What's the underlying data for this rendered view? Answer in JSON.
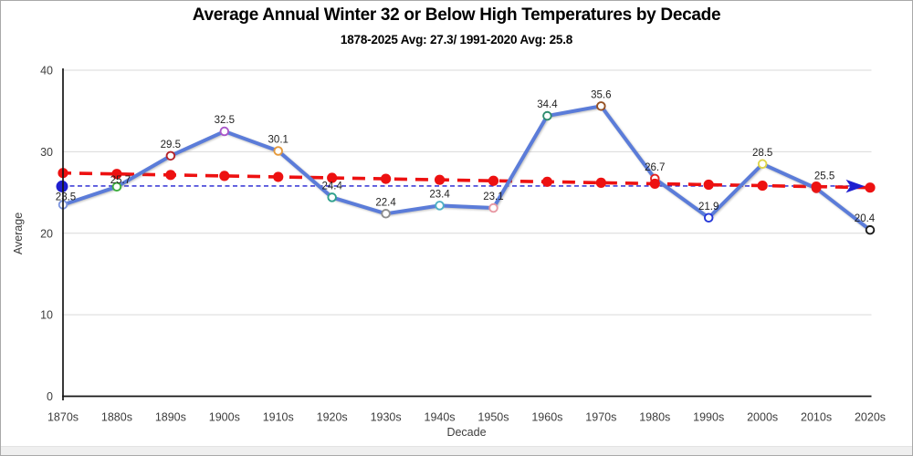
{
  "window": {
    "background": "#ffffff",
    "border_color": "#a9a9a9",
    "footer_strip_color": "#efefef"
  },
  "chart_data": {
    "type": "line",
    "title": "Average Annual Winter 32 or Below High Temperatures by Decade",
    "subtitle": "1878-2025 Avg: 27.3/ 1991-2020 Avg: 25.8",
    "xlabel": "Decade",
    "ylabel": "Average",
    "categories": [
      "1870s",
      "1880s",
      "1890s",
      "1900s",
      "1910s",
      "1920s",
      "1930s",
      "1940s",
      "1950s",
      "1960s",
      "1970s",
      "1980s",
      "1990s",
      "2000s",
      "2010s",
      "2020s"
    ],
    "series": [
      {
        "name": "average-winter-32-or-below-high-by-decade",
        "values": [
          23.5,
          25.7,
          29.5,
          32.5,
          30.1,
          24.4,
          22.4,
          23.4,
          23.1,
          34.4,
          35.6,
          26.7,
          21.9,
          28.5,
          25.5,
          20.4
        ],
        "line_color": "#5B7CD9",
        "marker_fill": "#ffffff",
        "marker_colors": [
          "#7D96E0",
          "#3FAE3F",
          "#B4232A",
          "#A957C9",
          "#E59A3C",
          "#2FA08C",
          "#8E8E8E",
          "#4FB0C4",
          "#E899A4",
          "#2F8D6F",
          "#955022",
          "#E32222",
          "#2638D8",
          "#DFD54A",
          "#E32222",
          "#1C1C1C"
        ],
        "data_labels": [
          "23.5",
          "25.7",
          "29.5",
          "32.5",
          "30.1",
          "24.4",
          "22.4",
          "23.4",
          "23.1",
          "34.4",
          "35.6",
          "26.7",
          "21.9",
          "28.5",
          "25.5",
          "20.4"
        ]
      }
    ],
    "trendline": {
      "name": "linear-trend-red-dashed",
      "start_value": 27.4,
      "end_value": 25.6,
      "color": "#ED1111",
      "style": "dashed",
      "dots_at_each_category": true
    },
    "reference_line": {
      "name": "1991-2020-average-arrow",
      "value": 25.8,
      "color": "#1F1FD0",
      "style": "dashed",
      "start_dot": true,
      "end_arrow": true
    },
    "ylim": [
      0,
      40
    ],
    "yticks": [
      0,
      10,
      20,
      30,
      40
    ],
    "grid": "horizontal",
    "gridline_color": "#D9D9D9",
    "axis_color": "#161616",
    "tick_label_color": "#3d3d3d",
    "data_label_color": "#1f1f1f",
    "legend": "none"
  }
}
